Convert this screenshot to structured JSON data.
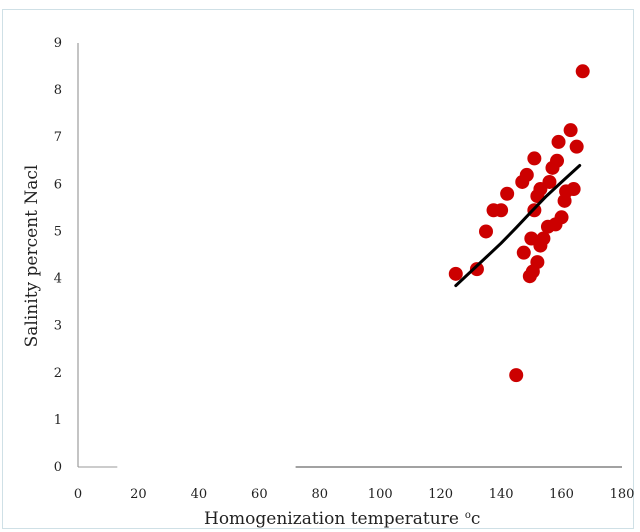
{
  "chart_data": {
    "type": "scatter",
    "title": "",
    "xlabel": "Homogenization temperature",
    "xlabel_unit_prefix": "o",
    "xlabel_unit": "c",
    "ylabel": "Salinity percent Nacl",
    "xlim": [
      0,
      180
    ],
    "ylim": [
      0,
      9
    ],
    "x_ticks": [
      "0",
      "20",
      "40",
      "60",
      "80",
      "100",
      "120",
      "140",
      "160",
      "180"
    ],
    "y_ticks": [
      "0",
      "1",
      "2",
      "3",
      "4",
      "5",
      "6",
      "7",
      "8",
      "9"
    ],
    "grid": false,
    "legend": "none",
    "point_color": "#cc0000",
    "trend_color": "#000000",
    "series": [
      {
        "points": [
          {
            "x": 125,
            "y": 4.1
          },
          {
            "x": 132,
            "y": 4.2
          },
          {
            "x": 135,
            "y": 5.0
          },
          {
            "x": 137.5,
            "y": 5.45
          },
          {
            "x": 140,
            "y": 5.45
          },
          {
            "x": 142,
            "y": 5.8
          },
          {
            "x": 145,
            "y": 1.95
          },
          {
            "x": 147,
            "y": 6.05
          },
          {
            "x": 147.5,
            "y": 4.55
          },
          {
            "x": 148.5,
            "y": 6.2
          },
          {
            "x": 149.5,
            "y": 4.05
          },
          {
            "x": 150,
            "y": 4.85
          },
          {
            "x": 150.5,
            "y": 4.15
          },
          {
            "x": 151,
            "y": 5.45
          },
          {
            "x": 151,
            "y": 6.55
          },
          {
            "x": 152,
            "y": 4.35
          },
          {
            "x": 152,
            "y": 5.75
          },
          {
            "x": 153,
            "y": 4.7
          },
          {
            "x": 153,
            "y": 5.9
          },
          {
            "x": 154,
            "y": 4.85
          },
          {
            "x": 155.5,
            "y": 5.1
          },
          {
            "x": 156,
            "y": 6.05
          },
          {
            "x": 157,
            "y": 6.35
          },
          {
            "x": 158,
            "y": 5.15
          },
          {
            "x": 158.5,
            "y": 6.5
          },
          {
            "x": 159,
            "y": 6.9
          },
          {
            "x": 160,
            "y": 5.3
          },
          {
            "x": 161,
            "y": 5.65
          },
          {
            "x": 161.5,
            "y": 5.85
          },
          {
            "x": 163,
            "y": 7.15
          },
          {
            "x": 164,
            "y": 5.9
          },
          {
            "x": 165,
            "y": 6.8
          },
          {
            "x": 167,
            "y": 8.4
          }
        ]
      }
    ],
    "trendline": {
      "type": "polynomial",
      "points": [
        {
          "x": 125,
          "y": 3.85
        },
        {
          "x": 130,
          "y": 4.15
        },
        {
          "x": 135,
          "y": 4.45
        },
        {
          "x": 140,
          "y": 4.75
        },
        {
          "x": 145,
          "y": 5.08
        },
        {
          "x": 150,
          "y": 5.42
        },
        {
          "x": 155,
          "y": 5.75
        },
        {
          "x": 160,
          "y": 6.05
        },
        {
          "x": 166,
          "y": 6.4
        }
      ]
    }
  }
}
